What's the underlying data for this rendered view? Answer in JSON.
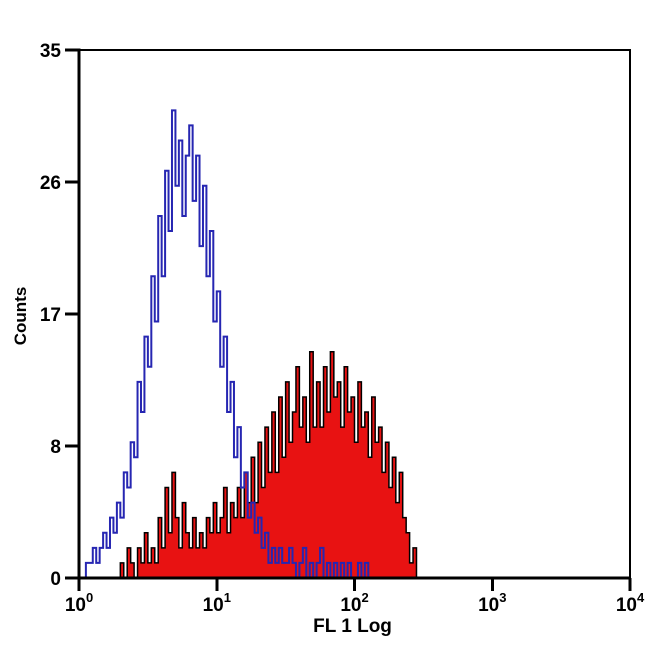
{
  "figure": {
    "background": "#ffffff",
    "axis_color": "#000000"
  },
  "chart_data": {
    "type": "histogram",
    "subtype": "flow-cytometry-overlay",
    "title": "",
    "xlabel": "FL 1 Log",
    "ylabel": "Counts",
    "x_scale": "log10",
    "xlim_log": [
      0,
      4
    ],
    "ylim": [
      0,
      35
    ],
    "x_tick_base": "10",
    "x_tick_exponents": [
      "0",
      "1",
      "2",
      "3",
      "4"
    ],
    "y_tick_labels": [
      "0",
      "8",
      "17",
      "26",
      "35"
    ],
    "grid": false,
    "legend": "none",
    "bins_per_decade": 40,
    "series": [
      {
        "name": "red-filled-histogram",
        "style": "filled",
        "fill": "#e81212",
        "stroke": "#000000",
        "stroke_width": 1.5,
        "counts": [
          0,
          0,
          0,
          0,
          0,
          0,
          0,
          0,
          0,
          0,
          0,
          0,
          1,
          0,
          2,
          1,
          0,
          2,
          1,
          3,
          1,
          2,
          1,
          4,
          2,
          6,
          3,
          7,
          4,
          2,
          5,
          3,
          2,
          4,
          2,
          3,
          2,
          4,
          3,
          5,
          3,
          4,
          6,
          3,
          5,
          4,
          6,
          4,
          7,
          5,
          8,
          5,
          9,
          6,
          10,
          7,
          11,
          7,
          12,
          8,
          13,
          9,
          11,
          14,
          10,
          12,
          9,
          15,
          10,
          13,
          10,
          14,
          11,
          15,
          12,
          13,
          10,
          14,
          11,
          12,
          9,
          13,
          10,
          11,
          8,
          12,
          9,
          10,
          7,
          9,
          6,
          8,
          5,
          7,
          4,
          3,
          1,
          2
        ]
      },
      {
        "name": "blue-open-histogram",
        "style": "open",
        "fill": "none",
        "stroke": "#2626b2",
        "stroke_width": 2,
        "counts": [
          0,
          0,
          1,
          1,
          2,
          1,
          2,
          3,
          2,
          4,
          3,
          5,
          4,
          7,
          6,
          9,
          8,
          13,
          11,
          16,
          14,
          20,
          17,
          24,
          20,
          27,
          23,
          31,
          26,
          29,
          24,
          28,
          30,
          25,
          28,
          22,
          26,
          20,
          23,
          17,
          19,
          14,
          16,
          11,
          13,
          8,
          10,
          6,
          7,
          4,
          5,
          3,
          4,
          2,
          3,
          1,
          2,
          1,
          2,
          1,
          1,
          2,
          1,
          0,
          1,
          2,
          0,
          1,
          0,
          1,
          2,
          0,
          1,
          0,
          1,
          0,
          1,
          0,
          1,
          0,
          0,
          1,
          0,
          1,
          0
        ]
      }
    ]
  }
}
